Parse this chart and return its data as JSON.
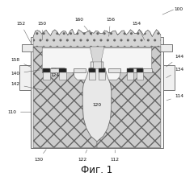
{
  "title": "Фиг. 1",
  "bg_color": "#ffffff",
  "lc": "#666666",
  "fc_outer": "#f0f0f0",
  "fc_sand": "#d0d0d0",
  "fc_mold": "#c8c8c8",
  "fc_cavity": "#e8e8e8",
  "fc_black": "#222222"
}
